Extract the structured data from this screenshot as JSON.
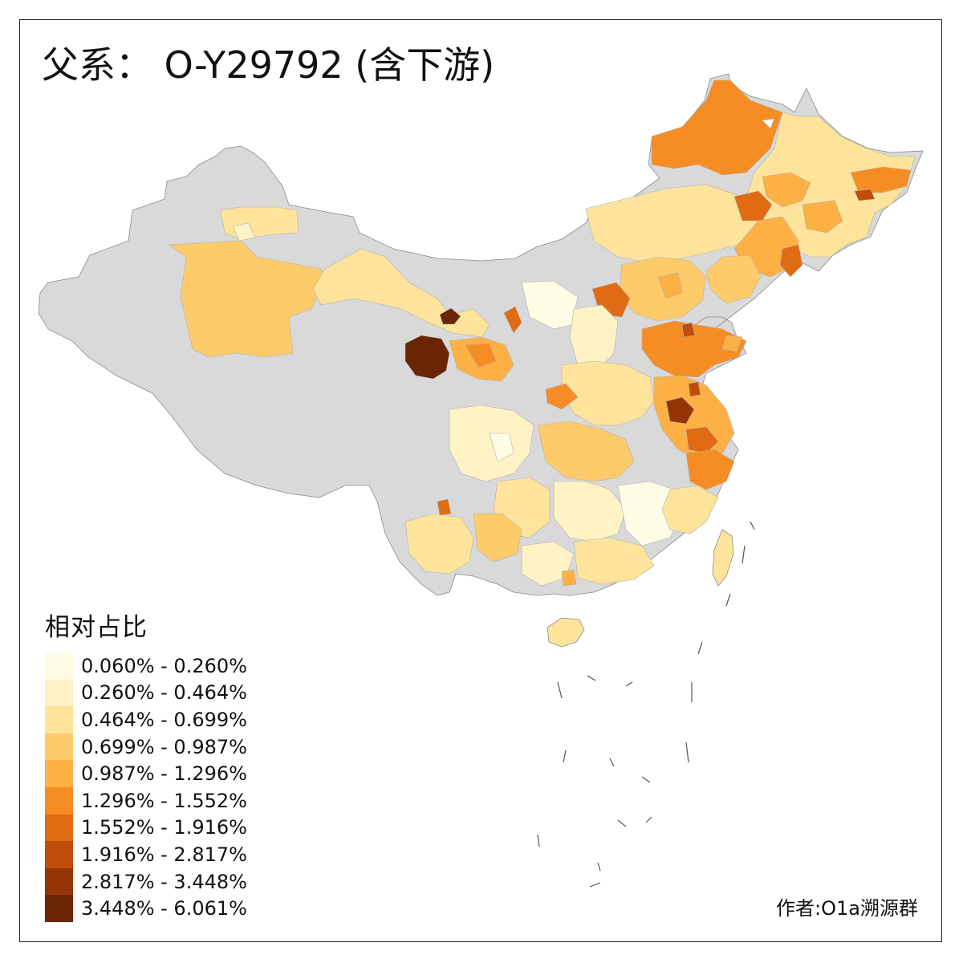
{
  "title": "父系： O-Y29792 (含下游)",
  "legend": {
    "title": "相对占比",
    "classes": [
      {
        "label": "0.060% - 0.260%",
        "color": "#fffce6"
      },
      {
        "label": "0.260% - 0.464%",
        "color": "#fff2c4"
      },
      {
        "label": "0.464% - 0.699%",
        "color": "#fee49a"
      },
      {
        "label": "0.699% - 0.987%",
        "color": "#fecb6a"
      },
      {
        "label": "0.987% - 1.296%",
        "color": "#fdb043"
      },
      {
        "label": "1.296% - 1.552%",
        "color": "#f58d24"
      },
      {
        "label": "1.552% - 1.916%",
        "color": "#e06b12"
      },
      {
        "label": "1.916% - 2.817%",
        "color": "#c14d0a"
      },
      {
        "label": "2.817% - 3.448%",
        "color": "#953506"
      },
      {
        "label": "3.448% - 6.061%",
        "color": "#6b2505"
      }
    ]
  },
  "no_data_color": "#d9d9d9",
  "credit": "作者:O1a溯源群"
}
